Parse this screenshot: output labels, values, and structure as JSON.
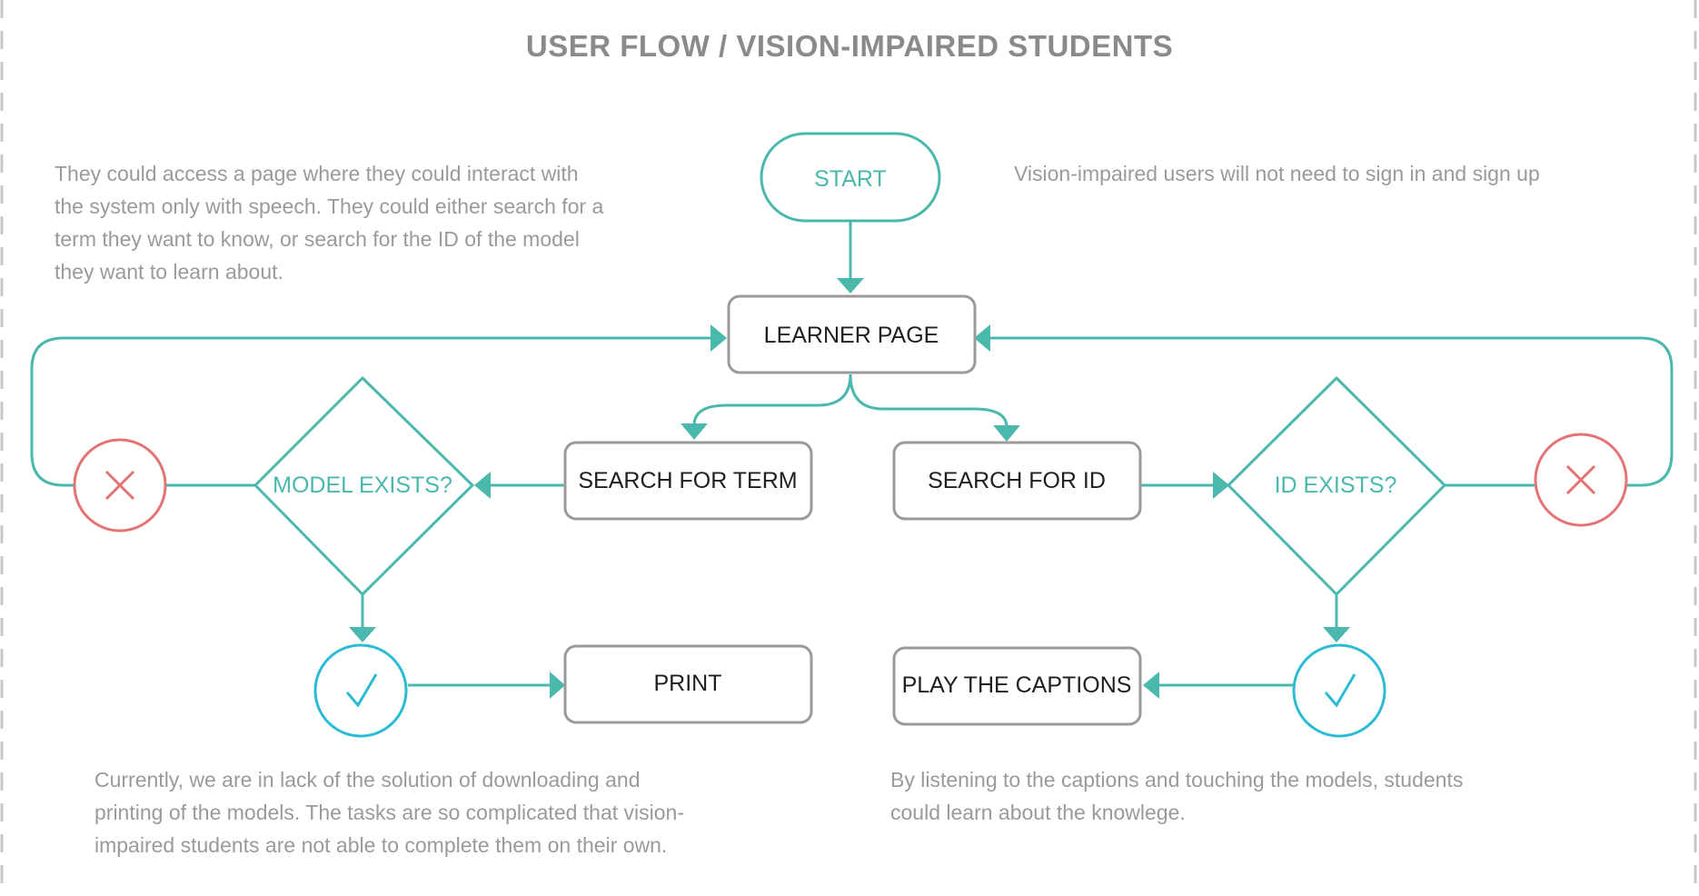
{
  "title": "USER FLOW / VISION-IMPAIRED STUDENTS",
  "notes": {
    "top_left": [
      "They could access a page where they could interact with",
      "the system only with speech. They could either search for a",
      "term they want to know, or search for the ID of the model",
      "they want to learn about."
    ],
    "top_right": [
      "Vision-impaired users will not need to sign in and sign up"
    ],
    "bottom_left": [
      "Currently, we are in lack of the solution of downloading and",
      "printing of the models. The tasks are so complicated that vision-",
      "impaired students are not able to complete them on their own."
    ],
    "bottom_right": [
      "By listening to the captions and touching the models, students",
      "could learn about the knowlege."
    ]
  },
  "nodes": {
    "start": "START",
    "learner_page": "LEARNER PAGE",
    "search_term": "SEARCH FOR TERM",
    "search_id": "SEARCH FOR ID",
    "model_exists": "MODEL EXISTS?",
    "id_exists": "ID EXISTS?",
    "print": "PRINT",
    "play_captions": "PLAY THE CAPTIONS"
  },
  "icons": {
    "fail": "x-icon",
    "success": "check-icon"
  },
  "colors": {
    "flow": "#4ab8ad",
    "box_border": "#9a9a9a",
    "fail": "#e57373",
    "success": "#2bbcd4",
    "text_muted": "#9a9a9a"
  }
}
